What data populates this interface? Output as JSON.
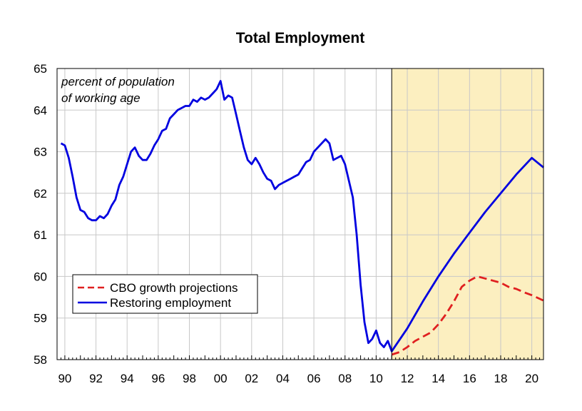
{
  "chart_data": {
    "type": "line",
    "title": "Total Employment",
    "annotation": [
      "percent of population",
      "of working age"
    ],
    "xlim": [
      1989.5,
      2020.75
    ],
    "ylim": [
      58,
      65
    ],
    "y_ticks": [
      "58",
      "59",
      "60",
      "61",
      "62",
      "63",
      "64",
      "65"
    ],
    "x_ticks": [
      {
        "year": 1990,
        "label": "90"
      },
      {
        "year": 1992,
        "label": "92"
      },
      {
        "year": 1994,
        "label": "94"
      },
      {
        "year": 1996,
        "label": "96"
      },
      {
        "year": 1998,
        "label": "98"
      },
      {
        "year": 2000,
        "label": "00"
      },
      {
        "year": 2002,
        "label": "02"
      },
      {
        "year": 2004,
        "label": "04"
      },
      {
        "year": 2006,
        "label": "06"
      },
      {
        "year": 2008,
        "label": "08"
      },
      {
        "year": 2010,
        "label": "10"
      },
      {
        "year": 2012,
        "label": "12"
      },
      {
        "year": 2014,
        "label": "14"
      },
      {
        "year": 2016,
        "label": "16"
      },
      {
        "year": 2018,
        "label": "18"
      },
      {
        "year": 2020,
        "label": "20"
      }
    ],
    "grid": true,
    "projection_start_year": 2011,
    "projection_shade_color": "#fcefc0",
    "legend_position": "lower-left",
    "series": [
      {
        "name": "CBO growth projections",
        "color": "#e02020",
        "dash": true,
        "x": [
          2011.0,
          2011.5,
          2012.0,
          2012.5,
          2013.0,
          2013.5,
          2014.0,
          2014.5,
          2015.0,
          2015.5,
          2016.0,
          2016.5,
          2017.0,
          2017.5,
          2018.0,
          2018.5,
          2019.0,
          2019.5,
          2020.0,
          2020.75
        ],
        "y": [
          58.12,
          58.18,
          58.3,
          58.45,
          58.55,
          58.65,
          58.85,
          59.1,
          59.4,
          59.75,
          59.9,
          60.0,
          59.95,
          59.9,
          59.85,
          59.75,
          59.7,
          59.62,
          59.55,
          59.42
        ]
      },
      {
        "name": "Restoring employment",
        "color": "#0000e0",
        "dash": false,
        "x": [
          1989.75,
          1990.0,
          1990.25,
          1990.5,
          1990.75,
          1991.0,
          1991.25,
          1991.5,
          1991.75,
          1992.0,
          1992.25,
          1992.5,
          1992.75,
          1993.0,
          1993.25,
          1993.5,
          1993.75,
          1994.0,
          1994.25,
          1994.5,
          1994.75,
          1995.0,
          1995.25,
          1995.5,
          1995.75,
          1996.0,
          1996.25,
          1996.5,
          1996.75,
          1997.0,
          1997.25,
          1997.5,
          1997.75,
          1998.0,
          1998.25,
          1998.5,
          1998.75,
          1999.0,
          1999.25,
          1999.5,
          1999.75,
          2000.0,
          2000.25,
          2000.5,
          2000.75,
          2001.0,
          2001.25,
          2001.5,
          2001.75,
          2002.0,
          2002.25,
          2002.5,
          2002.75,
          2003.0,
          2003.25,
          2003.5,
          2003.75,
          2004.0,
          2004.25,
          2004.5,
          2004.75,
          2005.0,
          2005.25,
          2005.5,
          2005.75,
          2006.0,
          2006.25,
          2006.5,
          2006.75,
          2007.0,
          2007.25,
          2007.5,
          2007.75,
          2008.0,
          2008.25,
          2008.5,
          2008.75,
          2009.0,
          2009.25,
          2009.5,
          2009.75,
          2010.0,
          2010.25,
          2010.5,
          2010.75,
          2011.0,
          2012.0,
          2013.0,
          2014.0,
          2015.0,
          2016.0,
          2017.0,
          2018.0,
          2019.0,
          2020.0,
          2020.75
        ],
        "y": [
          63.2,
          63.15,
          62.85,
          62.4,
          61.9,
          61.6,
          61.55,
          61.4,
          61.35,
          61.35,
          61.45,
          61.4,
          61.5,
          61.7,
          61.85,
          62.2,
          62.4,
          62.7,
          63.0,
          63.1,
          62.9,
          62.8,
          62.8,
          62.95,
          63.15,
          63.3,
          63.5,
          63.55,
          63.8,
          63.9,
          64.0,
          64.05,
          64.1,
          64.1,
          64.25,
          64.2,
          64.3,
          64.25,
          64.3,
          64.4,
          64.5,
          64.7,
          64.25,
          64.35,
          64.3,
          63.9,
          63.5,
          63.1,
          62.8,
          62.7,
          62.85,
          62.7,
          62.5,
          62.35,
          62.3,
          62.1,
          62.2,
          62.25,
          62.3,
          62.35,
          62.4,
          62.45,
          62.6,
          62.75,
          62.8,
          63.0,
          63.1,
          63.2,
          63.3,
          63.2,
          62.8,
          62.85,
          62.9,
          62.7,
          62.3,
          61.9,
          61.0,
          59.8,
          58.9,
          58.4,
          58.5,
          58.7,
          58.4,
          58.3,
          58.45,
          58.2,
          58.75,
          59.4,
          60.0,
          60.55,
          61.05,
          61.55,
          62.0,
          62.45,
          62.85,
          62.62
        ]
      }
    ]
  }
}
